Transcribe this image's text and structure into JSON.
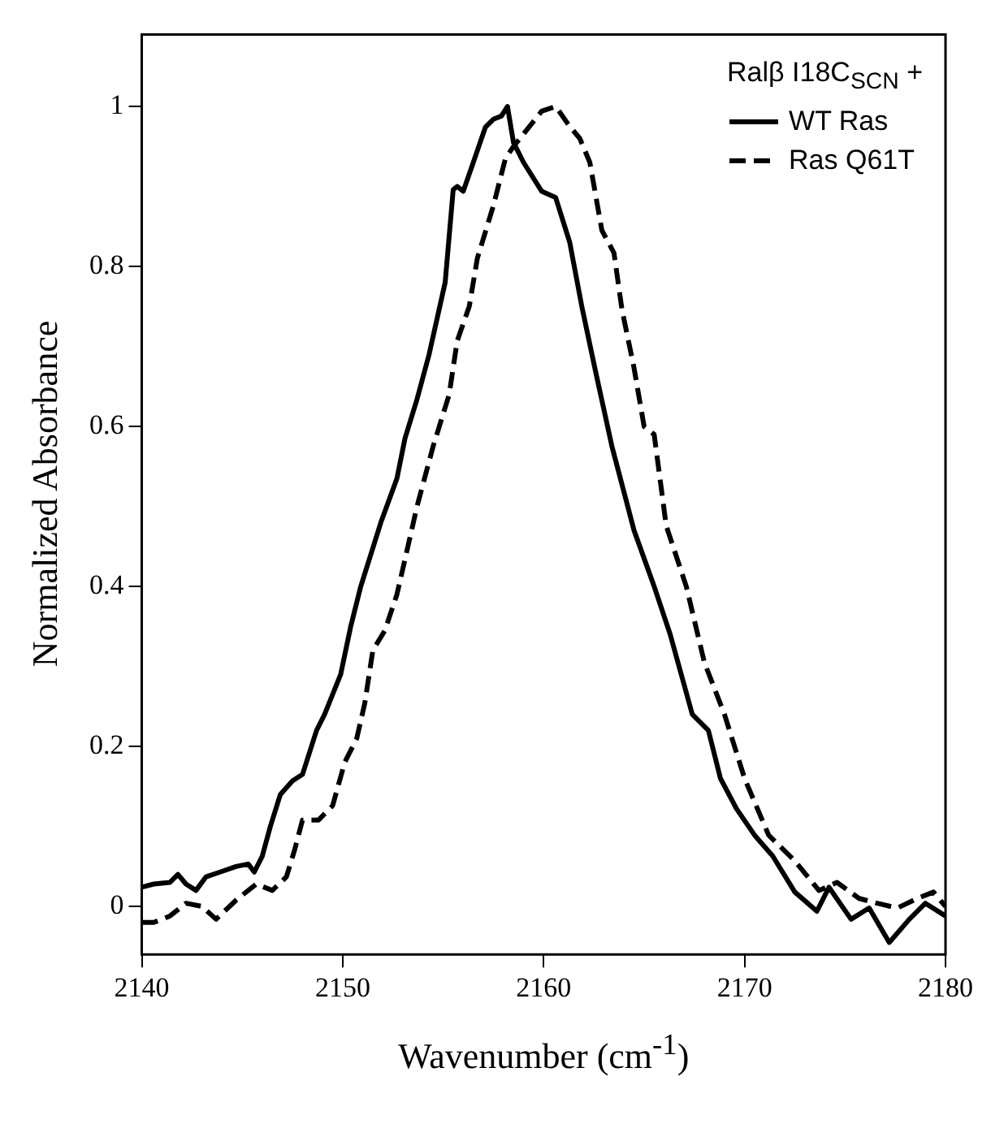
{
  "chart_data": {
    "type": "line",
    "xlabel": "Wavenumber (cm$^{-1}$)",
    "ylabel": "Normalized Absorbance",
    "legend_title": "Ralβ I18C$_{SCN}$ +",
    "legend": "top right",
    "grid": false,
    "marker": "none",
    "xlim": [
      2140,
      2180
    ],
    "xticks": [
      2140,
      2150,
      2160,
      2170,
      2180
    ],
    "ylim": [
      -0.06,
      1.09
    ],
    "yticks": [
      0,
      0.2,
      0.4,
      0.6,
      0.8,
      1
    ],
    "series": [
      {
        "name": "WT Ras",
        "color": "#000000",
        "line_style": "solid",
        "x": [
          2140,
          2140.6,
          2141.4,
          2141.8,
          2142.2,
          2142.7,
          2143.2,
          2143.9,
          2144.7,
          2145.3,
          2145.6,
          2146,
          2146.4,
          2146.9,
          2147.5,
          2148,
          2148.7,
          2149.1,
          2149.9,
          2150.4,
          2150.9,
          2151.9,
          2152.7,
          2153.1,
          2153.7,
          2154.3,
          2155.1,
          2155.5,
          2155.7,
          2156,
          2156.5,
          2157.1,
          2157.5,
          2157.9,
          2158.2,
          2158.5,
          2159,
          2159.9,
          2160.6,
          2161.3,
          2161.9,
          2162.6,
          2163.4,
          2164.5,
          2165.5,
          2166.3,
          2167.4,
          2168.2,
          2168.8,
          2169.6,
          2170.5,
          2171.4,
          2172.5,
          2173.6,
          2174.2,
          2175.3,
          2176.2,
          2177.2,
          2178.2,
          2179,
          2180
        ],
        "values": [
          0.024,
          0.028,
          0.03,
          0.04,
          0.028,
          0.02,
          0.037,
          0.043,
          0.05,
          0.053,
          0.043,
          0.063,
          0.1,
          0.14,
          0.157,
          0.165,
          0.22,
          0.24,
          0.29,
          0.35,
          0.4,
          0.48,
          0.535,
          0.585,
          0.634,
          0.69,
          0.78,
          0.896,
          0.9,
          0.894,
          0.93,
          0.974,
          0.984,
          0.988,
          1.0,
          0.955,
          0.93,
          0.894,
          0.886,
          0.83,
          0.75,
          0.667,
          0.575,
          0.47,
          0.4,
          0.34,
          0.24,
          0.22,
          0.16,
          0.122,
          0.089,
          0.063,
          0.018,
          -0.006,
          0.024,
          -0.016,
          -0.002,
          -0.045,
          -0.016,
          0.004,
          -0.012
        ]
      },
      {
        "name": "Ras Q61T",
        "color": "#000000",
        "line_style": "dashed",
        "x": [
          2140,
          2140.6,
          2141.4,
          2142.2,
          2143,
          2143.7,
          2144.7,
          2145.7,
          2146.5,
          2147.2,
          2147.6,
          2148,
          2148.8,
          2149.5,
          2150.1,
          2150.7,
          2151.1,
          2151.5,
          2152.1,
          2152.7,
          2153.7,
          2154.5,
          2155.3,
          2155.7,
          2156.3,
          2156.7,
          2157.5,
          2158.1,
          2158.5,
          2159.3,
          2159.9,
          2160.6,
          2161.3,
          2161.8,
          2162.3,
          2162.9,
          2163.5,
          2163.9,
          2164.5,
          2165,
          2165.5,
          2166.1,
          2167.1,
          2168,
          2169,
          2170,
          2171.2,
          2172.5,
          2173.7,
          2174.6,
          2175.7,
          2176.6,
          2177.6,
          2178.6,
          2179.4,
          2180
        ],
        "values": [
          -0.02,
          -0.02,
          -0.012,
          0.004,
          0,
          -0.016,
          0.008,
          0.028,
          0.02,
          0.037,
          0.07,
          0.108,
          0.108,
          0.126,
          0.18,
          0.21,
          0.254,
          0.32,
          0.345,
          0.39,
          0.5,
          0.575,
          0.64,
          0.707,
          0.75,
          0.81,
          0.876,
          0.935,
          0.95,
          0.975,
          0.994,
          1.0,
          0.975,
          0.96,
          0.93,
          0.845,
          0.817,
          0.746,
          0.673,
          0.6,
          0.59,
          0.476,
          0.4,
          0.305,
          0.24,
          0.16,
          0.089,
          0.057,
          0.02,
          0.03,
          0.01,
          0.004,
          -0.002,
          0.01,
          0.018,
          0
        ]
      }
    ]
  }
}
